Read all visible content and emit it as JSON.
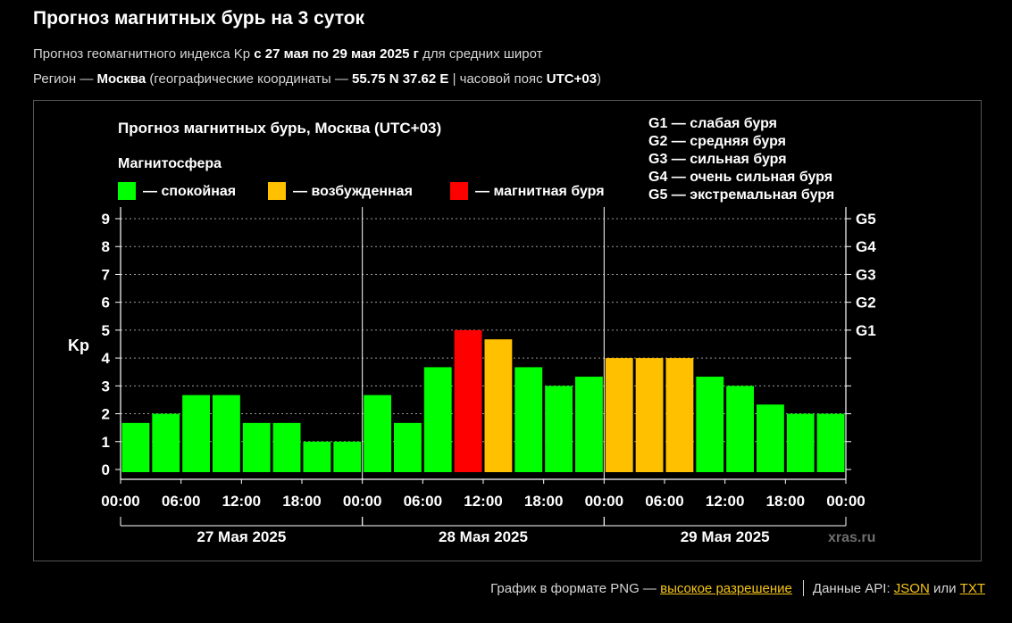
{
  "header": {
    "title": "Прогноз магнитных бурь на 3 суток",
    "line1_pre": "Прогноз геомагнитного индекса Kp ",
    "line1_bold": "с 27 мая по 29 мая 2025 г",
    "line1_post": " для средних широт",
    "line2_pre": "Регион — ",
    "line2_region": "Москва",
    "line2_mid": " (географические координаты — ",
    "line2_coords": "55.75 N 37.62 E",
    "line2_mid2": " | часовой пояс ",
    "line2_tz": "UTC+03",
    "line2_post": ")"
  },
  "chart_data": {
    "type": "bar",
    "title": "Прогноз магнитных бурь, Москва (UTC+03)",
    "legend_title": "Магнитосфера",
    "legend": [
      {
        "label": "— спокойная",
        "color": "#00ff00"
      },
      {
        "label": "— возбужденная",
        "color": "#ffc000"
      },
      {
        "label": "— магнитная буря",
        "color": "#ff0000"
      }
    ],
    "storm_levels": [
      "G1 — слабая буря",
      "G2 — средняя буря",
      "G3 — сильная буря",
      "G4 — очень сильная буря",
      "G5 — экстремальная буря"
    ],
    "ylabel": "Kp",
    "ylim": [
      0,
      9
    ],
    "yticks": [
      "0",
      "1",
      "2",
      "3",
      "4",
      "5",
      "6",
      "7",
      "8",
      "9"
    ],
    "right_ticks": [
      {
        "value": 5,
        "label": "G1"
      },
      {
        "value": 6,
        "label": "G2"
      },
      {
        "value": 7,
        "label": "G3"
      },
      {
        "value": 8,
        "label": "G4"
      },
      {
        "value": 9,
        "label": "G5"
      }
    ],
    "xtick_labels": [
      "00:00",
      "06:00",
      "12:00",
      "18:00",
      "00:00",
      "06:00",
      "12:00",
      "18:00",
      "00:00",
      "06:00",
      "12:00",
      "18:00",
      "00:00"
    ],
    "days": [
      "27 Мая 2025",
      "28 Мая 2025",
      "29 Мая 2025"
    ],
    "values": [
      1.67,
      2.0,
      2.67,
      2.67,
      1.67,
      1.67,
      1.0,
      1.0,
      2.67,
      1.67,
      3.67,
      5.0,
      4.67,
      3.67,
      3.0,
      3.33,
      4.0,
      4.0,
      4.0,
      3.33,
      3.0,
      2.33,
      2.0,
      2.0
    ],
    "colors": [
      "#00ff00",
      "#00ff00",
      "#00ff00",
      "#00ff00",
      "#00ff00",
      "#00ff00",
      "#00ff00",
      "#00ff00",
      "#00ff00",
      "#00ff00",
      "#00ff00",
      "#ff0000",
      "#ffc000",
      "#00ff00",
      "#00ff00",
      "#00ff00",
      "#ffc000",
      "#ffc000",
      "#ffc000",
      "#00ff00",
      "#00ff00",
      "#00ff00",
      "#00ff00",
      "#00ff00"
    ],
    "grid": true,
    "watermark": "xras.ru"
  },
  "footer": {
    "png_text": "График в формате PNG — ",
    "png_link": "высокое разрешение",
    "api_text": "Данные API: ",
    "json_link": "JSON",
    "or_text": " или ",
    "txt_link": "TXT"
  }
}
